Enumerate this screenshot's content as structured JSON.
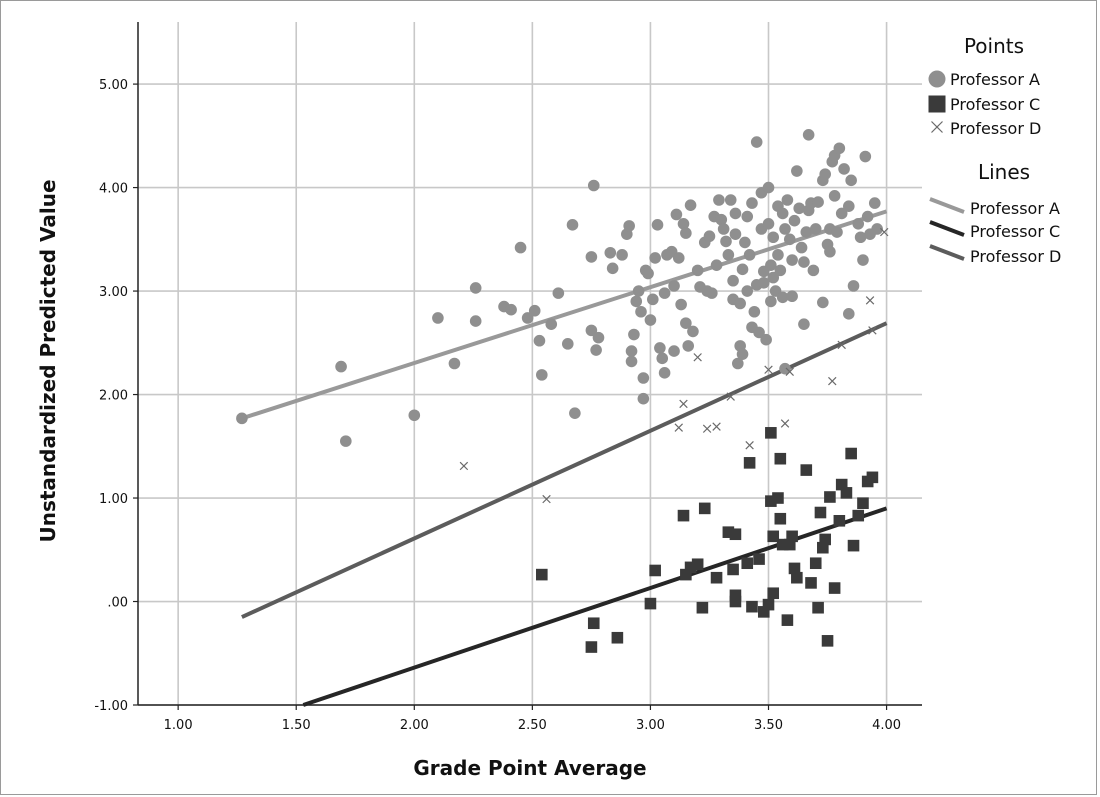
{
  "chart_data": {
    "type": "scatter",
    "xlabel": "Grade Point Average",
    "ylabel": "Unstandardized Predicted Value",
    "xlim": [
      0.83,
      4.15
    ],
    "ylim": [
      -1.0,
      5.6
    ],
    "x_ticks": [
      1.0,
      1.5,
      2.0,
      2.5,
      3.0,
      3.5,
      4.0
    ],
    "x_tick_labels": [
      "1.00",
      "1.50",
      "2.00",
      "2.50",
      "3.00",
      "3.50",
      "4.00"
    ],
    "y_ticks": [
      -1.0,
      0.0,
      1.0,
      2.0,
      3.0,
      4.0,
      5.0
    ],
    "y_tick_labels": [
      "-1.00",
      ".00",
      "1.00",
      "2.00",
      "3.00",
      "4.00",
      "5.00"
    ],
    "grid": true,
    "legend": {
      "position": "right",
      "points_title": "Points",
      "lines_title": "Lines"
    },
    "series": [
      {
        "name": "Professor A",
        "marker": "circle",
        "color": "#8f8f8f",
        "line_color": "#999999",
        "fit_line": {
          "x": [
            1.27,
            4.0
          ],
          "y": [
            1.77,
            3.77
          ]
        },
        "points": [
          [
            1.27,
            1.77
          ],
          [
            1.69,
            2.27
          ],
          [
            1.71,
            1.55
          ],
          [
            2.0,
            1.8
          ],
          [
            2.1,
            2.74
          ],
          [
            2.17,
            2.3
          ],
          [
            2.26,
            3.03
          ],
          [
            2.26,
            2.71
          ],
          [
            2.38,
            2.85
          ],
          [
            2.41,
            2.82
          ],
          [
            2.45,
            3.42
          ],
          [
            2.48,
            2.74
          ],
          [
            2.51,
            2.81
          ],
          [
            2.53,
            2.52
          ],
          [
            2.54,
            2.19
          ],
          [
            2.58,
            2.68
          ],
          [
            2.61,
            2.98
          ],
          [
            2.65,
            2.49
          ],
          [
            2.67,
            3.64
          ],
          [
            2.68,
            1.82
          ],
          [
            2.75,
            3.33
          ],
          [
            2.75,
            2.62
          ],
          [
            2.76,
            4.02
          ],
          [
            2.77,
            2.43
          ],
          [
            2.78,
            2.55
          ],
          [
            2.83,
            3.37
          ],
          [
            2.84,
            3.22
          ],
          [
            2.88,
            3.35
          ],
          [
            2.9,
            3.55
          ],
          [
            2.91,
            3.63
          ],
          [
            2.92,
            2.42
          ],
          [
            2.92,
            2.32
          ],
          [
            2.93,
            2.58
          ],
          [
            2.94,
            2.9
          ],
          [
            2.95,
            3.0
          ],
          [
            2.96,
            2.8
          ],
          [
            2.97,
            2.16
          ],
          [
            2.97,
            1.96
          ],
          [
            2.98,
            3.2
          ],
          [
            2.99,
            3.17
          ],
          [
            3.0,
            2.72
          ],
          [
            3.01,
            2.92
          ],
          [
            3.02,
            3.32
          ],
          [
            3.03,
            3.64
          ],
          [
            3.04,
            2.45
          ],
          [
            3.05,
            2.35
          ],
          [
            3.06,
            2.21
          ],
          [
            3.06,
            2.98
          ],
          [
            3.07,
            3.35
          ],
          [
            3.09,
            3.38
          ],
          [
            3.1,
            3.05
          ],
          [
            3.1,
            2.42
          ],
          [
            3.11,
            3.74
          ],
          [
            3.12,
            3.32
          ],
          [
            3.13,
            2.87
          ],
          [
            3.14,
            3.65
          ],
          [
            3.15,
            2.69
          ],
          [
            3.15,
            3.56
          ],
          [
            3.16,
            2.47
          ],
          [
            3.17,
            3.83
          ],
          [
            3.18,
            2.61
          ],
          [
            3.2,
            3.2
          ],
          [
            3.21,
            3.04
          ],
          [
            3.23,
            3.47
          ],
          [
            3.24,
            3.0
          ],
          [
            3.25,
            3.53
          ],
          [
            3.26,
            2.98
          ],
          [
            3.27,
            3.72
          ],
          [
            3.28,
            3.25
          ],
          [
            3.29,
            3.88
          ],
          [
            3.3,
            3.69
          ],
          [
            3.31,
            3.6
          ],
          [
            3.32,
            3.48
          ],
          [
            3.33,
            3.35
          ],
          [
            3.34,
            3.88
          ],
          [
            3.35,
            3.1
          ],
          [
            3.35,
            2.92
          ],
          [
            3.36,
            3.55
          ],
          [
            3.36,
            3.75
          ],
          [
            3.37,
            2.3
          ],
          [
            3.38,
            2.47
          ],
          [
            3.38,
            2.88
          ],
          [
            3.39,
            2.39
          ],
          [
            3.39,
            3.21
          ],
          [
            3.4,
            3.47
          ],
          [
            3.41,
            3.0
          ],
          [
            3.41,
            3.72
          ],
          [
            3.42,
            3.35
          ],
          [
            3.43,
            2.65
          ],
          [
            3.43,
            3.85
          ],
          [
            3.44,
            2.8
          ],
          [
            3.45,
            3.06
          ],
          [
            3.45,
            4.44
          ],
          [
            3.46,
            2.6
          ],
          [
            3.47,
            3.6
          ],
          [
            3.47,
            3.95
          ],
          [
            3.48,
            3.19
          ],
          [
            3.48,
            3.08
          ],
          [
            3.49,
            2.53
          ],
          [
            3.5,
            4.0
          ],
          [
            3.5,
            3.65
          ],
          [
            3.51,
            3.25
          ],
          [
            3.51,
            2.9
          ],
          [
            3.52,
            3.52
          ],
          [
            3.52,
            3.13
          ],
          [
            3.53,
            3.0
          ],
          [
            3.54,
            3.35
          ],
          [
            3.54,
            3.82
          ],
          [
            3.55,
            3.2
          ],
          [
            3.56,
            3.75
          ],
          [
            3.56,
            2.94
          ],
          [
            3.57,
            3.6
          ],
          [
            3.57,
            2.25
          ],
          [
            3.58,
            3.88
          ],
          [
            3.59,
            3.5
          ],
          [
            3.6,
            3.3
          ],
          [
            3.6,
            2.95
          ],
          [
            3.61,
            3.68
          ],
          [
            3.62,
            4.16
          ],
          [
            3.63,
            3.8
          ],
          [
            3.64,
            3.42
          ],
          [
            3.65,
            3.28
          ],
          [
            3.65,
            2.68
          ],
          [
            3.66,
            3.57
          ],
          [
            3.67,
            3.78
          ],
          [
            3.67,
            4.51
          ],
          [
            3.68,
            3.85
          ],
          [
            3.69,
            3.2
          ],
          [
            3.7,
            3.6
          ],
          [
            3.71,
            3.86
          ],
          [
            3.73,
            2.89
          ],
          [
            3.73,
            4.07
          ],
          [
            3.74,
            4.13
          ],
          [
            3.75,
            3.45
          ],
          [
            3.76,
            3.6
          ],
          [
            3.76,
            3.38
          ],
          [
            3.77,
            4.25
          ],
          [
            3.78,
            4.31
          ],
          [
            3.78,
            3.92
          ],
          [
            3.79,
            3.57
          ],
          [
            3.8,
            4.38
          ],
          [
            3.81,
            3.75
          ],
          [
            3.82,
            4.18
          ],
          [
            3.84,
            3.82
          ],
          [
            3.84,
            2.78
          ],
          [
            3.85,
            4.07
          ],
          [
            3.86,
            3.05
          ],
          [
            3.88,
            3.65
          ],
          [
            3.89,
            3.52
          ],
          [
            3.9,
            3.3
          ],
          [
            3.91,
            4.3
          ],
          [
            3.92,
            3.72
          ],
          [
            3.93,
            3.55
          ],
          [
            3.95,
            3.85
          ],
          [
            3.96,
            3.6
          ]
        ]
      },
      {
        "name": "Professor C",
        "marker": "square",
        "color": "#3a3a3a",
        "line_color": "#262626",
        "fit_line": {
          "x": [
            1.53,
            4.0
          ],
          "y": [
            -1.0,
            0.9
          ]
        },
        "points": [
          [
            2.54,
            0.26
          ],
          [
            2.75,
            -0.44
          ],
          [
            2.76,
            -0.21
          ],
          [
            2.86,
            -0.35
          ],
          [
            3.0,
            -0.02
          ],
          [
            3.02,
            0.3
          ],
          [
            3.14,
            0.83
          ],
          [
            3.15,
            0.26
          ],
          [
            3.17,
            0.33
          ],
          [
            3.2,
            0.36
          ],
          [
            3.22,
            -0.06
          ],
          [
            3.23,
            0.9
          ],
          [
            3.28,
            0.23
          ],
          [
            3.33,
            0.67
          ],
          [
            3.35,
            0.31
          ],
          [
            3.36,
            0.65
          ],
          [
            3.36,
            0.06
          ],
          [
            3.36,
            0.0
          ],
          [
            3.41,
            0.37
          ],
          [
            3.42,
            1.34
          ],
          [
            3.43,
            -0.05
          ],
          [
            3.46,
            0.41
          ],
          [
            3.48,
            -0.1
          ],
          [
            3.5,
            -0.03
          ],
          [
            3.51,
            1.63
          ],
          [
            3.51,
            0.97
          ],
          [
            3.52,
            0.08
          ],
          [
            3.52,
            0.63
          ],
          [
            3.54,
            1.0
          ],
          [
            3.55,
            1.38
          ],
          [
            3.55,
            0.8
          ],
          [
            3.56,
            0.55
          ],
          [
            3.58,
            -0.18
          ],
          [
            3.59,
            0.55
          ],
          [
            3.6,
            0.63
          ],
          [
            3.61,
            0.32
          ],
          [
            3.62,
            0.23
          ],
          [
            3.66,
            1.27
          ],
          [
            3.68,
            0.18
          ],
          [
            3.7,
            0.37
          ],
          [
            3.71,
            -0.06
          ],
          [
            3.72,
            0.86
          ],
          [
            3.73,
            0.52
          ],
          [
            3.74,
            0.6
          ],
          [
            3.75,
            -0.38
          ],
          [
            3.76,
            1.01
          ],
          [
            3.78,
            0.13
          ],
          [
            3.8,
            0.78
          ],
          [
            3.81,
            1.13
          ],
          [
            3.83,
            1.05
          ],
          [
            3.85,
            1.43
          ],
          [
            3.86,
            0.54
          ],
          [
            3.88,
            0.83
          ],
          [
            3.9,
            0.95
          ],
          [
            3.92,
            1.16
          ],
          [
            3.94,
            1.2
          ]
        ]
      },
      {
        "name": "Professor D",
        "marker": "x",
        "color": "#6a6a6a",
        "line_color": "#5c5c5c",
        "fit_line": {
          "x": [
            1.27,
            4.0
          ],
          "y": [
            -0.15,
            2.69
          ]
        },
        "points": [
          [
            2.21,
            1.31
          ],
          [
            2.56,
            0.99
          ],
          [
            3.12,
            1.68
          ],
          [
            3.14,
            1.91
          ],
          [
            3.2,
            2.36
          ],
          [
            3.24,
            1.67
          ],
          [
            3.28,
            1.69
          ],
          [
            3.34,
            1.98
          ],
          [
            3.42,
            1.51
          ],
          [
            3.5,
            2.24
          ],
          [
            3.57,
            1.72
          ],
          [
            3.59,
            2.22
          ],
          [
            3.77,
            2.13
          ],
          [
            3.81,
            2.48
          ],
          [
            3.93,
            2.91
          ],
          [
            3.94,
            2.62
          ],
          [
            3.99,
            3.57
          ]
        ]
      }
    ]
  }
}
